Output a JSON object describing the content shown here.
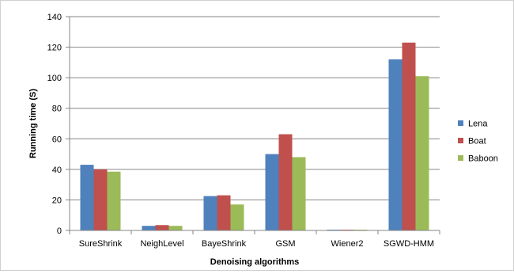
{
  "chart_data": {
    "type": "bar",
    "title": "",
    "xlabel": "Denoising algorithms",
    "ylabel": "Running time (S)",
    "categories": [
      "SureShrink",
      "NeighLevel",
      "BayeShrink",
      "GSM",
      "Wiener2",
      "SGWD-HMM"
    ],
    "series": [
      {
        "name": "Lena",
        "color": "#4f81bd",
        "values": [
          43,
          3,
          22.5,
          50,
          0.5,
          112
        ]
      },
      {
        "name": "Boat",
        "color": "#c0504d",
        "values": [
          40,
          3.5,
          23,
          63,
          0.5,
          123
        ]
      },
      {
        "name": "Baboon",
        "color": "#9bbb59",
        "values": [
          38.5,
          3,
          17,
          48,
          0.5,
          101
        ]
      }
    ],
    "ylim": [
      0,
      140
    ],
    "yticks": [
      0,
      20,
      40,
      60,
      80,
      100,
      120,
      140
    ],
    "grid": "horizontal",
    "legend_position": "right"
  }
}
